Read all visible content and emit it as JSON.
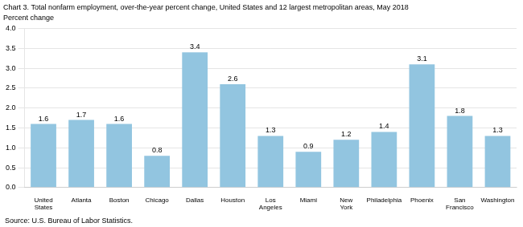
{
  "chart_data": {
    "type": "bar",
    "title": "Chart 3. Total nonfarm employment, over-the-year percent change, United States and 12 largest metropolitan areas, May 2018",
    "ylabel": "Percent change",
    "source": "Source: U.S. Bureau of Labor Statistics.",
    "categories": [
      "United\nStates",
      "Atlanta",
      "Boston",
      "Chicago",
      "Dallas",
      "Houston",
      "Los\nAngeles",
      "Miami",
      "New\nYork",
      "Philadelphia",
      "Phoenix",
      "San\nFrancisco",
      "Washington"
    ],
    "values": [
      1.6,
      1.7,
      1.6,
      0.8,
      3.4,
      2.6,
      1.3,
      0.9,
      1.2,
      1.4,
      3.1,
      1.8,
      1.3
    ],
    "color": "#92c5e0",
    "ylim": [
      0.0,
      4.0
    ],
    "yticks": [
      {
        "value": 0,
        "label": "0.0"
      },
      0.5,
      {
        "value": 1,
        "label": "1.0"
      },
      1.5,
      {
        "value": 2,
        "label": "2.0"
      },
      2.5,
      {
        "value": 3,
        "label": "3.0"
      },
      3.5,
      {
        "value": 4,
        "label": "4.0"
      }
    ],
    "grid": true,
    "data_labels": true
  }
}
